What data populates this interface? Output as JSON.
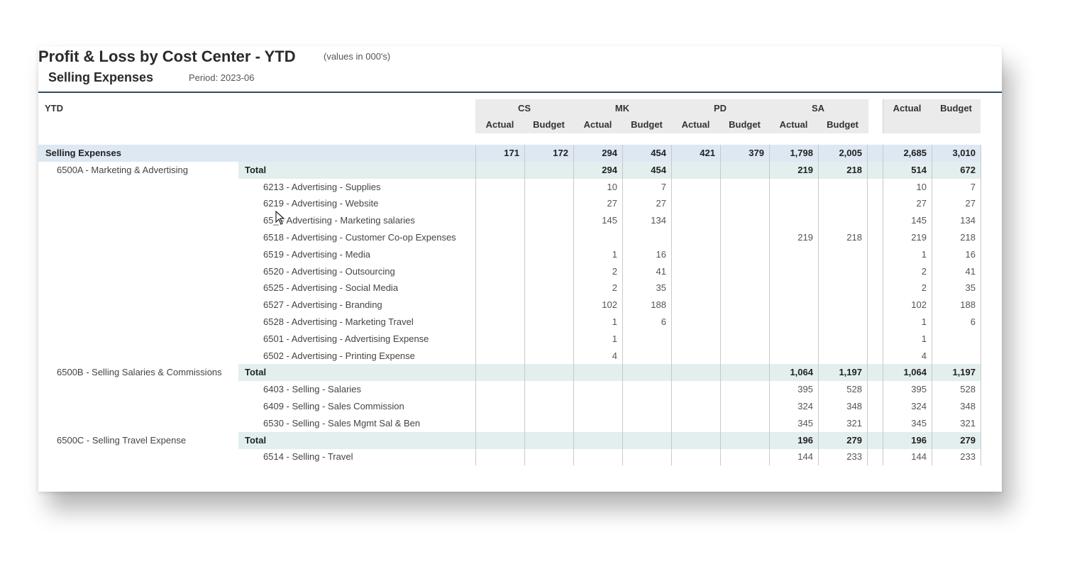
{
  "report": {
    "title": "Profit & Loss by Cost Center - YTD",
    "units_note": "(values in 000's)",
    "subtitle": "Selling Expenses",
    "period": "Period: 2023-06",
    "row_header": "YTD"
  },
  "columns": {
    "groups": [
      "CS",
      "MK",
      "PD",
      "SA"
    ],
    "sub": [
      "Actual",
      "Budget"
    ],
    "totals": [
      "Actual",
      "Budget"
    ]
  },
  "rows": [
    {
      "type": "section",
      "label": "Selling Expenses",
      "account": "",
      "values": [
        "171",
        "172",
        "294",
        "454",
        "421",
        "379",
        "1,798",
        "2,005",
        "2,685",
        "3,010"
      ]
    },
    {
      "type": "total",
      "label": "6500A - Marketing & Advertising",
      "account": "Total",
      "values": [
        "",
        "",
        "294",
        "454",
        "",
        "",
        "219",
        "218",
        "514",
        "672"
      ]
    },
    {
      "type": "detail",
      "label": "",
      "account": "6213 - Advertising - Supplies",
      "values": [
        "",
        "",
        "10",
        "7",
        "",
        "",
        "",
        "",
        "10",
        "7"
      ]
    },
    {
      "type": "detail",
      "label": "",
      "account": "6219 - Advertising - Website",
      "values": [
        "",
        "",
        "27",
        "27",
        "",
        "",
        "",
        "",
        "27",
        "27"
      ]
    },
    {
      "type": "detail",
      "label": "",
      "account": "65_ - Advertising - Marketing salaries",
      "values": [
        "",
        "",
        "145",
        "134",
        "",
        "",
        "",
        "",
        "145",
        "134"
      ]
    },
    {
      "type": "detail",
      "label": "",
      "account": "6518 - Advertising - Customer Co-op Expenses",
      "values": [
        "",
        "",
        "",
        "",
        "",
        "",
        "219",
        "218",
        "219",
        "218"
      ]
    },
    {
      "type": "detail",
      "label": "",
      "account": "6519 - Advertising - Media",
      "values": [
        "",
        "",
        "1",
        "16",
        "",
        "",
        "",
        "",
        "1",
        "16"
      ]
    },
    {
      "type": "detail",
      "label": "",
      "account": "6520 - Advertising - Outsourcing",
      "values": [
        "",
        "",
        "2",
        "41",
        "",
        "",
        "",
        "",
        "2",
        "41"
      ]
    },
    {
      "type": "detail",
      "label": "",
      "account": "6525 - Advertising - Social Media",
      "values": [
        "",
        "",
        "2",
        "35",
        "",
        "",
        "",
        "",
        "2",
        "35"
      ]
    },
    {
      "type": "detail",
      "label": "",
      "account": "6527 - Advertising - Branding",
      "values": [
        "",
        "",
        "102",
        "188",
        "",
        "",
        "",
        "",
        "102",
        "188"
      ]
    },
    {
      "type": "detail",
      "label": "",
      "account": "6528 - Advertising - Marketing Travel",
      "values": [
        "",
        "",
        "1",
        "6",
        "",
        "",
        "",
        "",
        "1",
        "6"
      ]
    },
    {
      "type": "detail",
      "label": "",
      "account": "6501 - Advertising - Advertising Expense",
      "values": [
        "",
        "",
        "1",
        "",
        "",
        "",
        "",
        "",
        "1",
        ""
      ]
    },
    {
      "type": "detail",
      "label": "",
      "account": "6502 - Advertising - Printing Expense",
      "values": [
        "",
        "",
        "4",
        "",
        "",
        "",
        "",
        "",
        "4",
        ""
      ]
    },
    {
      "type": "total",
      "label": "6500B - Selling Salaries & Commissions",
      "account": "Total",
      "values": [
        "",
        "",
        "",
        "",
        "",
        "",
        "1,064",
        "1,197",
        "1,064",
        "1,197"
      ]
    },
    {
      "type": "detail",
      "label": "",
      "account": "6403 - Selling - Salaries",
      "values": [
        "",
        "",
        "",
        "",
        "",
        "",
        "395",
        "528",
        "395",
        "528"
      ]
    },
    {
      "type": "detail",
      "label": "",
      "account": "6409 - Selling - Sales Commission",
      "values": [
        "",
        "",
        "",
        "",
        "",
        "",
        "324",
        "348",
        "324",
        "348"
      ]
    },
    {
      "type": "detail",
      "label": "",
      "account": "6530 - Selling - Sales Mgmt Sal & Ben",
      "values": [
        "",
        "",
        "",
        "",
        "",
        "",
        "345",
        "321",
        "345",
        "321"
      ]
    },
    {
      "type": "total",
      "label": "6500C - Selling Travel Expense",
      "account": "Total",
      "values": [
        "",
        "",
        "",
        "",
        "",
        "",
        "196",
        "279",
        "196",
        "279"
      ]
    },
    {
      "type": "detail",
      "label": "",
      "account": "6514 - Selling - Travel",
      "values": [
        "",
        "",
        "",
        "",
        "",
        "",
        "144",
        "233",
        "144",
        "233"
      ]
    }
  ]
}
